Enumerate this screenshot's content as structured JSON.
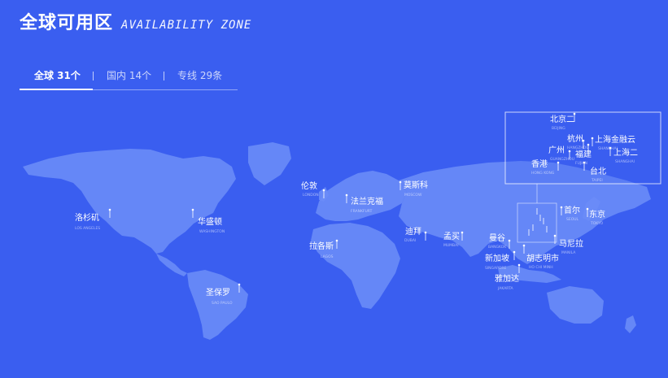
{
  "header": {
    "title": "全球可用区",
    "subtitle": "AVAILABILITY ZONE"
  },
  "tabs": [
    {
      "label": "全球 31个",
      "active": true
    },
    {
      "label": "国内 14个",
      "active": false
    },
    {
      "label": "专线 29条",
      "active": false
    }
  ],
  "cities": [
    {
      "name": "洛杉矶",
      "sub": "LOS ANGELES"
    },
    {
      "name": "华盛顿",
      "sub": "WASHINGTON"
    },
    {
      "name": "圣保罗",
      "sub": "SAO PAULO"
    },
    {
      "name": "伦敦",
      "sub": "LONDON"
    },
    {
      "name": "法兰克福",
      "sub": "FRANKFURT"
    },
    {
      "name": "莫斯科",
      "sub": "MOSCOW"
    },
    {
      "name": "拉各斯",
      "sub": "LAGOS"
    },
    {
      "name": "迪拜",
      "sub": "DUBAI"
    },
    {
      "name": "孟买",
      "sub": "MUMBAI"
    },
    {
      "name": "曼谷",
      "sub": "BANGKOK"
    },
    {
      "name": "新加坡",
      "sub": "SINGAPORE"
    },
    {
      "name": "胡志明市",
      "sub": "HO CHI MINH"
    },
    {
      "name": "雅加达",
      "sub": "JAKARTA"
    },
    {
      "name": "马尼拉",
      "sub": "MANILA"
    },
    {
      "name": "首尔",
      "sub": "SEOUL"
    },
    {
      "name": "东京",
      "sub": "TOKYO"
    }
  ],
  "inset_cities": [
    {
      "name": "北京二",
      "sub": "BEIJING"
    },
    {
      "name": "杭州",
      "sub": "HANGZHOU"
    },
    {
      "name": "上海金融云",
      "sub": "SHANGHAI"
    },
    {
      "name": "广州",
      "sub": "GUANGZHOU"
    },
    {
      "name": "上海二",
      "sub": "SHANGHAI"
    },
    {
      "name": "福建",
      "sub": "FUJIAN"
    },
    {
      "name": "香港",
      "sub": "HONG KONG"
    },
    {
      "name": "台北",
      "sub": "TAIPEI"
    }
  ],
  "colors": {
    "background": "#3a5ef0",
    "land": "#6a8cf7"
  }
}
